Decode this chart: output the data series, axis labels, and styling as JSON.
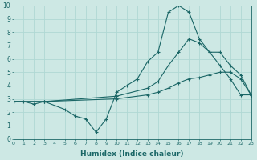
{
  "xlabel": "Humidex (Indice chaleur)",
  "xlim": [
    0,
    23
  ],
  "ylim": [
    0,
    10
  ],
  "xticks": [
    0,
    1,
    2,
    3,
    4,
    5,
    6,
    7,
    8,
    9,
    10,
    11,
    12,
    13,
    14,
    15,
    16,
    17,
    18,
    19,
    20,
    21,
    22,
    23
  ],
  "yticks": [
    0,
    1,
    2,
    3,
    4,
    5,
    6,
    7,
    8,
    9,
    10
  ],
  "bg_color": "#cde8e4",
  "line_color": "#1a6666",
  "grid_color": "#b0d8d4",
  "lines": [
    {
      "x": [
        0,
        1,
        2,
        3,
        4,
        5,
        6,
        7,
        8,
        9,
        10,
        11,
        12,
        13,
        14,
        15,
        16,
        17,
        18,
        19,
        20,
        21,
        22,
        23
      ],
      "y": [
        2.8,
        2.8,
        2.6,
        2.8,
        2.5,
        2.2,
        1.7,
        1.5,
        0.5,
        1.5,
        3.5,
        4.0,
        4.5,
        5.8,
        6.5,
        9.5,
        10.0,
        9.5,
        7.5,
        6.5,
        5.5,
        4.5,
        3.3,
        3.3
      ]
    },
    {
      "x": [
        0,
        3,
        10,
        13,
        14,
        15,
        16,
        17,
        18,
        19,
        20,
        21,
        22,
        23
      ],
      "y": [
        2.8,
        2.8,
        3.2,
        3.8,
        4.3,
        5.5,
        6.5,
        7.5,
        7.2,
        6.5,
        6.5,
        5.5,
        4.8,
        3.3
      ]
    },
    {
      "x": [
        0,
        3,
        10,
        13,
        14,
        15,
        16,
        17,
        18,
        19,
        20,
        21,
        22,
        23
      ],
      "y": [
        2.8,
        2.8,
        3.0,
        3.3,
        3.5,
        3.8,
        4.2,
        4.5,
        4.6,
        4.8,
        5.0,
        5.0,
        4.5,
        3.3
      ]
    }
  ]
}
